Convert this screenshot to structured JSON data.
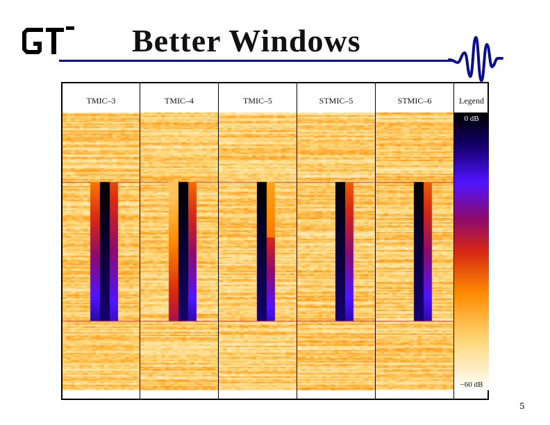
{
  "slide": {
    "title": "Better Windows",
    "page_number": "5",
    "logo_icon": "gt-logo-icon",
    "wave_icon": "wavelet-icon",
    "accent_color": "#0a0f8c"
  },
  "figure": {
    "columns": [
      {
        "label": "TMIC–3"
      },
      {
        "label": "TMIC–4"
      },
      {
        "label": "TMIC–5"
      },
      {
        "label": "STMIC–5"
      },
      {
        "label": "STMIC–6"
      }
    ],
    "legend": {
      "header": "Legend",
      "top_label": "0 dB",
      "bottom_label": "−60 dB"
    }
  }
}
